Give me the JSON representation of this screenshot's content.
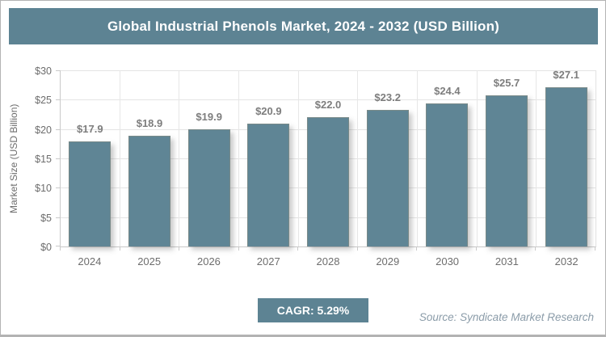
{
  "title": "Global Industrial Phenols Market, 2024 - 2032 (USD Billion)",
  "footer": {
    "cagr_label": "CAGR: 5.29%",
    "source": "Source: Syndicate Market Research"
  },
  "colors": {
    "accent": "#5d8393",
    "bar_fill": "#5f8595",
    "bar_value_label": "#7d7d7d",
    "axis_text": "#6d6d6d",
    "gridline": "#e4e4e4",
    "source_text": "#8b9ca9",
    "title_text": "#ffffff",
    "frame_border": "#b3b3b3"
  },
  "chart_data": {
    "type": "bar",
    "title": "Global Industrial Phenols Market, 2024 - 2032 (USD Billion)",
    "categories": [
      "2024",
      "2025",
      "2026",
      "2027",
      "2028",
      "2029",
      "2030",
      "2031",
      "2032"
    ],
    "values": [
      17.9,
      18.9,
      19.9,
      20.9,
      22.0,
      23.2,
      24.4,
      25.7,
      27.1
    ],
    "value_labels": [
      "$17.9",
      "$18.9",
      "$19.9",
      "$20.9",
      "$22.0",
      "$23.2",
      "$24.4",
      "$25.7",
      "$27.1"
    ],
    "xlabel": "",
    "ylabel": "Market Size (USD Billion)",
    "ylim": [
      0,
      30
    ],
    "ytick_step": 5,
    "ytick_labels": [
      "$0",
      "$5",
      "$10",
      "$15",
      "$20",
      "$25",
      "$30"
    ],
    "grid": true,
    "legend": false,
    "annotations": [
      "CAGR: 5.29%",
      "Source: Syndicate Market Research"
    ]
  }
}
